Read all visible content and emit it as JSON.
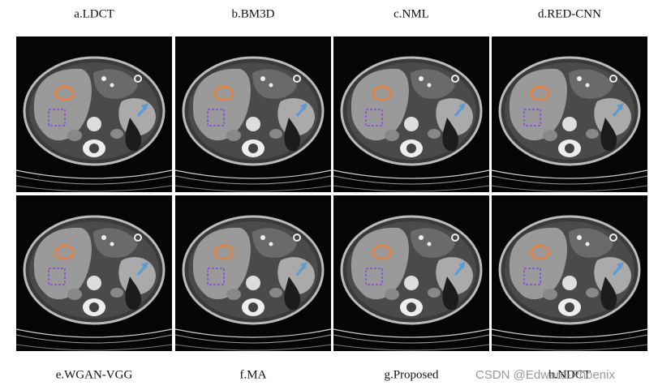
{
  "panels": [
    {
      "label": "a.LDCT"
    },
    {
      "label": "b.BM3D"
    },
    {
      "label": "c.NML"
    },
    {
      "label": "d.RED-CNN"
    },
    {
      "label": "e.WGAN-VGG"
    },
    {
      "label": "f.MA"
    },
    {
      "label": "g.Proposed"
    },
    {
      "label": "h.NDCT"
    }
  ],
  "watermark": "CSDN @Edward-Phoenix"
}
